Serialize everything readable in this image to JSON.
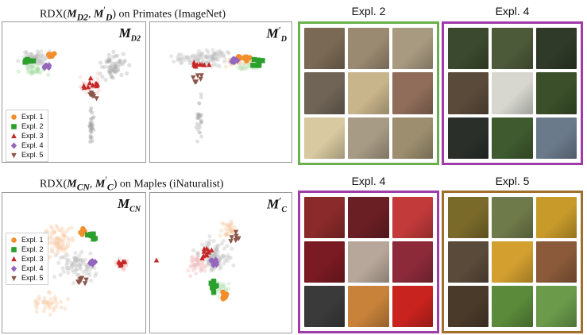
{
  "colors": {
    "expl1": "#f28e2b",
    "expl2": "#2ca02c",
    "expl3": "#c62828",
    "expl4": "#9467bd",
    "expl5": "#8c564b",
    "box_green": "#6ab04c",
    "box_purple": "#a03caa",
    "box_brown": "#a0702a"
  },
  "rows": [
    {
      "title_prefix": "RDX(",
      "title_m1": "M",
      "title_m1_sub": "D2",
      "title_sep": ", ",
      "title_m2": "M",
      "title_m2_sup": "′",
      "title_m2_sub": "D",
      "title_suffix": ") on Primates (ImageNet)",
      "left_label": "M",
      "left_label_sub": "D2",
      "right_label": "M",
      "right_label_sup": "′",
      "right_label_sub": "D",
      "boxes": [
        {
          "title": "Expl. 2",
          "color_key": "box_green",
          "thumbs": [
            "#7a6a55",
            "#9b8a72",
            "#a89a80",
            "#6f6456",
            "#c9b58c",
            "#8f6d5a",
            "#d8c9a0",
            "#a79b85",
            "#9c8e6f"
          ]
        },
        {
          "title": "Expl. 4",
          "color_key": "box_purple",
          "thumbs": [
            "#3b4a2e",
            "#4d5a3a",
            "#2f3a28",
            "#5a4a3a",
            "#d7d7d0",
            "#3a4f2a",
            "#2a2f2a",
            "#3f5a2f",
            "#6b7a8a"
          ]
        }
      ]
    },
    {
      "title_prefix": "RDX(",
      "title_m1": "M",
      "title_m1_sub": "CN",
      "title_sep": ", ",
      "title_m2": "M",
      "title_m2_sup": "′",
      "title_m2_sub": "C",
      "title_suffix": ") on Maples (iNaturalist)",
      "left_label": "M",
      "left_label_sub": "CN",
      "right_label": "M",
      "right_label_sup": "′",
      "right_label_sub": "C",
      "boxes": [
        {
          "title": "Expl. 4",
          "color_key": "box_purple",
          "thumbs": [
            "#8a2a2a",
            "#6a1f24",
            "#c23a3a",
            "#7a1a22",
            "#b7a79a",
            "#8c2a3a",
            "#3a3a3a",
            "#c8823a",
            "#c8231e"
          ]
        },
        {
          "title": "Expl. 5",
          "color_key": "box_brown",
          "thumbs": [
            "#7a6a2a",
            "#6f7a4a",
            "#c79a2a",
            "#5a4a3a",
            "#d3a030",
            "#8a5a3a",
            "#4a3a2a",
            "#5a8a3a",
            "#6a9a4a"
          ]
        }
      ]
    }
  ],
  "legend": [
    {
      "label": "Expl. 1",
      "marker": "circle",
      "color_key": "expl1"
    },
    {
      "label": "Expl. 2",
      "marker": "square",
      "color_key": "expl2"
    },
    {
      "label": "Expl. 3",
      "marker": "triangle-up",
      "color_key": "expl3"
    },
    {
      "label": "Expl. 4",
      "marker": "diamond",
      "color_key": "expl4"
    },
    {
      "label": "Expl. 5",
      "marker": "triangle-down",
      "color_key": "expl5"
    }
  ]
}
